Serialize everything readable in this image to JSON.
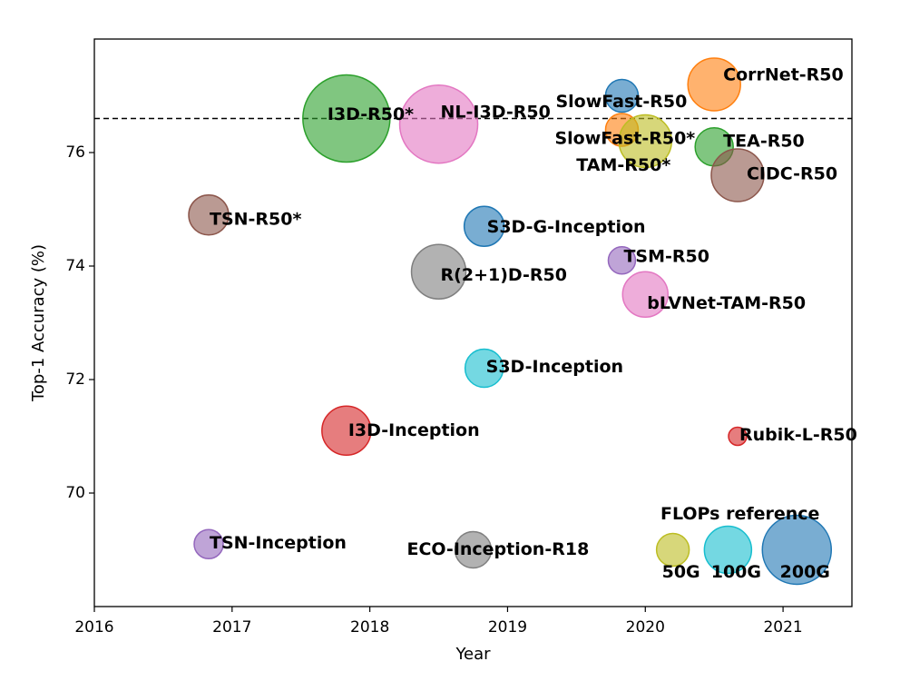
{
  "chart_data": {
    "type": "scatter",
    "xlabel": "Year",
    "ylabel": "Top-1 Accuracy (%)",
    "xlim": [
      2016,
      2021.5
    ],
    "ylim": [
      68.0,
      78.0
    ],
    "xticks": [
      2016,
      2017,
      2018,
      2019,
      2020,
      2021
    ],
    "yticks": [
      70,
      72,
      74,
      76
    ],
    "hline": 76.6,
    "grid": false,
    "points": [
      {
        "label": "TSN-R50*",
        "x": 2016.83,
        "y": 74.9,
        "color": "#8c564b"
      },
      {
        "label": "TSN-Inception",
        "x": 2016.83,
        "y": 69.1,
        "color": "#9467bd"
      },
      {
        "label": "I3D-R50*",
        "x": 2017.83,
        "y": 76.6,
        "color": "#2ca02c"
      },
      {
        "label": "I3D-Inception",
        "x": 2017.83,
        "y": 71.1,
        "color": "#d62728"
      },
      {
        "label": "NL-I3D-R50",
        "x": 2018.5,
        "y": 76.5,
        "color": "#e377c2"
      },
      {
        "label": "R(2+1)D-R50",
        "x": 2018.5,
        "y": 73.9,
        "color": "#7f7f7f"
      },
      {
        "label": "ECO-Inception-R18",
        "x": 2018.75,
        "y": 69.0,
        "color": "#7f7f7f"
      },
      {
        "label": "S3D-G-Inception",
        "x": 2018.83,
        "y": 74.7,
        "color": "#1f77b4"
      },
      {
        "label": "S3D-Inception",
        "x": 2018.83,
        "y": 72.2,
        "color": "#17becf"
      },
      {
        "label": "SlowFast-R50",
        "x": 2019.83,
        "y": 77.0,
        "color": "#1f77b4"
      },
      {
        "label": "SlowFast-R50*",
        "x": 2019.83,
        "y": 76.4,
        "color": "#ff7f0e"
      },
      {
        "label": "TAM-R50*",
        "x": 2020.0,
        "y": 76.2,
        "color": "#bcbd22"
      },
      {
        "label": "TSM-R50",
        "x": 2019.83,
        "y": 74.1,
        "color": "#9467bd"
      },
      {
        "label": "bLVNet-TAM-R50",
        "x": 2020.0,
        "y": 73.5,
        "color": "#e377c2"
      },
      {
        "label": "CorrNet-R50",
        "x": 2020.5,
        "y": 77.2,
        "color": "#ff7f0e"
      },
      {
        "label": "TEA-R50",
        "x": 2020.5,
        "y": 76.1,
        "color": "#2ca02c"
      },
      {
        "label": "CIDC-R50",
        "x": 2020.67,
        "y": 75.6,
        "color": "#8c564b"
      },
      {
        "label": "Rubik-L-R50",
        "x": 2020.67,
        "y": 71.0,
        "color": "#d62728"
      }
    ],
    "reference": {
      "title": "FLOPs reference",
      "items": [
        {
          "label": "50G",
          "x": 2020.2,
          "y": 69.0,
          "color": "#bcbd22"
        },
        {
          "label": "100G",
          "x": 2020.6,
          "y": 69.0,
          "color": "#17becf"
        },
        {
          "label": "200G",
          "x": 2021.1,
          "y": 69.0,
          "color": "#1f77b4"
        }
      ]
    }
  }
}
